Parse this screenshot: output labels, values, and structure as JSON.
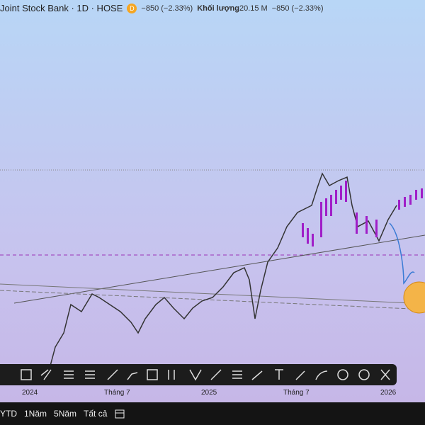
{
  "header": {
    "symbol": "Joint Stock Bank · 1D · HOSE",
    "badge": "D",
    "change": "−850 (−2.33%)",
    "volume_label": "Khối lượng",
    "volume": "20.15 M",
    "volume_change": "−850 (−2.33%)"
  },
  "time_axis": [
    "2024",
    "Tháng 7",
    "2025",
    "Tháng 7",
    "2026"
  ],
  "ranges": [
    "YTD",
    "1Năm",
    "5Năm",
    "Tất cả"
  ]
}
